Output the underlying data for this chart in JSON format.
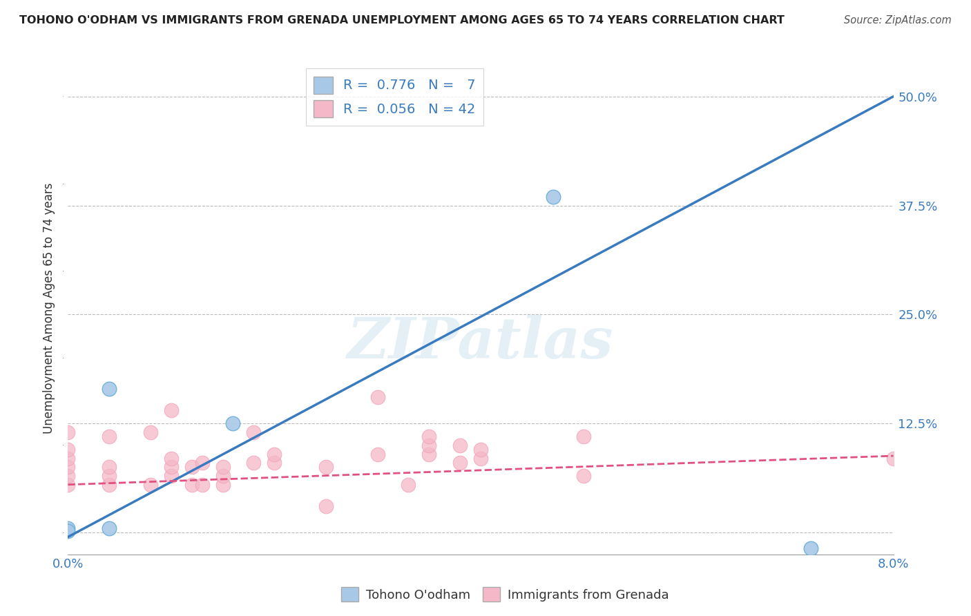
{
  "title": "TOHONO O'ODHAM VS IMMIGRANTS FROM GRENADA UNEMPLOYMENT AMONG AGES 65 TO 74 YEARS CORRELATION CHART",
  "source": "Source: ZipAtlas.com",
  "ylabel": "Unemployment Among Ages 65 to 74 years",
  "xlim": [
    0.0,
    0.08
  ],
  "ylim": [
    -0.025,
    0.54
  ],
  "yticks": [
    0.0,
    0.125,
    0.25,
    0.375,
    0.5
  ],
  "ytick_labels": [
    "",
    "12.5%",
    "25.0%",
    "37.5%",
    "50.0%"
  ],
  "xtick_positions": [
    0.0,
    0.01,
    0.02,
    0.03,
    0.04,
    0.05,
    0.06,
    0.07,
    0.08
  ],
  "xtick_labels": [
    "0.0%",
    "",
    "",
    "",
    "",
    "",
    "",
    "",
    "8.0%"
  ],
  "R_blue": 0.776,
  "N_blue": 7,
  "R_pink": 0.056,
  "N_pink": 42,
  "blue_color": "#a8c8e8",
  "blue_edge_color": "#6baed6",
  "pink_color": "#f4b8c8",
  "pink_edge_color": "#f4a0b8",
  "blue_line_color": "#3a7bbf",
  "pink_line_color": "#e05080",
  "watermark": "ZIPatlas",
  "blue_line_x0": 0.0,
  "blue_line_y0": -0.005,
  "blue_line_x1": 0.08,
  "blue_line_y1": 0.5,
  "pink_line_x0": 0.0,
  "pink_line_y0": 0.055,
  "pink_line_x1": 0.08,
  "pink_line_y1": 0.088,
  "blue_points_x": [
    0.0,
    0.0,
    0.004,
    0.004,
    0.016,
    0.047,
    0.072
  ],
  "blue_points_y": [
    0.005,
    0.002,
    0.005,
    0.165,
    0.125,
    0.385,
    -0.018
  ],
  "pink_points_x": [
    0.0,
    0.0,
    0.0,
    0.0,
    0.0,
    0.0,
    0.004,
    0.004,
    0.004,
    0.004,
    0.008,
    0.008,
    0.01,
    0.01,
    0.01,
    0.01,
    0.012,
    0.012,
    0.013,
    0.013,
    0.015,
    0.015,
    0.015,
    0.018,
    0.018,
    0.02,
    0.02,
    0.025,
    0.025,
    0.03,
    0.03,
    0.033,
    0.035,
    0.035,
    0.035,
    0.038,
    0.038,
    0.04,
    0.04,
    0.05,
    0.05,
    0.08
  ],
  "pink_points_y": [
    0.055,
    0.065,
    0.075,
    0.085,
    0.095,
    0.115,
    0.055,
    0.065,
    0.075,
    0.11,
    0.055,
    0.115,
    0.065,
    0.075,
    0.085,
    0.14,
    0.055,
    0.075,
    0.055,
    0.08,
    0.055,
    0.065,
    0.075,
    0.08,
    0.115,
    0.08,
    0.09,
    0.03,
    0.075,
    0.09,
    0.155,
    0.055,
    0.09,
    0.1,
    0.11,
    0.08,
    0.1,
    0.085,
    0.095,
    0.11,
    0.065,
    0.085
  ],
  "background_color": "#ffffff",
  "grid_color": "#bbbbbb"
}
